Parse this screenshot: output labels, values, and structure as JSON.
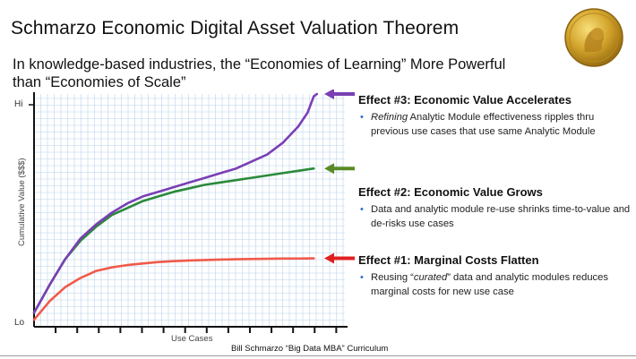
{
  "title": "Schmarzo Economic Digital Asset Valuation Theorem",
  "subtitle": "In knowledge-based industries, the “Economies of Learning” More Powerful than “Economies of Scale”",
  "medal_icon": "nobel-medal-icon",
  "effects": [
    {
      "title": "Effect #3: Economic Value Accelerates",
      "arrow_color": "#7a3fb4",
      "bullet_emphasis": "Refining",
      "bullet_rest": " Analytic Module effectiveness ripples thru previous use cases that use same Analytic Module"
    },
    {
      "title": "Effect #2: Economic Value Grows",
      "arrow_color": "#5a8a25",
      "bullet_pre": "Data and analytic module re-use shrinks time-to-value and de-risks use cases"
    },
    {
      "title": "Effect #1: Marginal Costs Flatten",
      "arrow_color": "#e02020",
      "bullet_pre": "Reusing “",
      "bullet_emphasis": "curated",
      "bullet_post": "” data and analytic modules reduces marginal costs for new use case"
    }
  ],
  "credit": "Bill Schmarzo “Big Data MBA” Curriculum",
  "chart_data": {
    "type": "line",
    "xlabel": "Use Cases",
    "ylabel": "Cumulative Value ($$$)",
    "y_tick_labels": [
      "Hi",
      "Lo"
    ],
    "xlim": [
      0,
      10
    ],
    "ylim": [
      0,
      10
    ],
    "grid": true,
    "x_tick_count": 14,
    "series": [
      {
        "color": "#7a3fb4",
        "x": [
          0,
          0.5,
          1,
          1.5,
          2,
          2.5,
          3,
          3.5,
          4,
          4.5,
          5,
          5.5,
          6,
          6.5,
          7,
          7.5,
          8,
          8.5,
          8.8,
          9.0,
          9.1
        ],
        "y": [
          0.6,
          1.8,
          2.9,
          3.8,
          4.4,
          4.9,
          5.3,
          5.6,
          5.8,
          6.0,
          6.2,
          6.4,
          6.6,
          6.8,
          7.1,
          7.4,
          7.9,
          8.6,
          9.2,
          9.9,
          10.0
        ]
      },
      {
        "color": "#2a8a3a",
        "x": [
          0,
          0.5,
          1,
          1.5,
          2,
          2.5,
          3,
          3.5,
          4,
          4.5,
          5,
          5.5,
          6,
          6.5,
          7,
          7.5,
          8,
          8.5,
          9.0
        ],
        "y": [
          0.6,
          1.8,
          2.9,
          3.7,
          4.3,
          4.8,
          5.1,
          5.4,
          5.6,
          5.8,
          5.95,
          6.1,
          6.2,
          6.3,
          6.4,
          6.5,
          6.6,
          6.7,
          6.8
        ]
      },
      {
        "color": "#f05a4a",
        "x": [
          0,
          0.5,
          1,
          1.5,
          2,
          2.5,
          3,
          3.5,
          4,
          4.5,
          5,
          5.5,
          6,
          6.5,
          7,
          7.5,
          8,
          8.5,
          9.0
        ],
        "y": [
          0.3,
          1.1,
          1.7,
          2.1,
          2.4,
          2.55,
          2.65,
          2.72,
          2.78,
          2.82,
          2.85,
          2.87,
          2.89,
          2.9,
          2.91,
          2.92,
          2.93,
          2.93,
          2.94
        ]
      }
    ]
  }
}
